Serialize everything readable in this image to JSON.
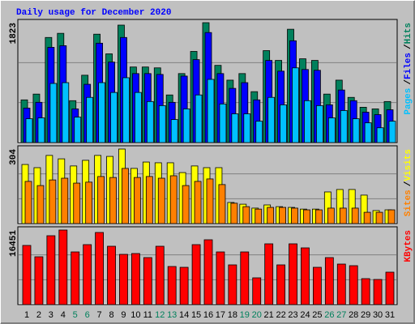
{
  "chart_data": [
    {
      "type": "bar",
      "title": "Daily usage for December 2020",
      "title_color": "#0000ff",
      "ylim": [
        0,
        1823
      ],
      "yticks": [
        1823
      ],
      "series": [
        {
          "name": "Hits",
          "color": "#00805c",
          "values": [
            649,
            737,
            1598,
            1661,
            637,
            1024,
            1648,
            1349,
            1786,
            1149,
            1149,
            1136,
            724,
            1049,
            1386,
            1823,
            1174,
            949,
            1049,
            774,
            1398,
            1249,
            1723,
            1274,
            1249,
            737,
            949,
            687,
            537,
            512,
            624
          ]
        },
        {
          "name": "Files",
          "color": "#0000ff",
          "values": [
            524,
            612,
            1448,
            1473,
            512,
            886,
            1511,
            1224,
            1598,
            1049,
            1049,
            1036,
            612,
            1011,
            1261,
            1673,
            1049,
            824,
            911,
            649,
            1249,
            1086,
            1548,
            1111,
            1099,
            574,
            799,
            637,
            462,
            425,
            499
          ]
        },
        {
          "name": "Pages",
          "color": "#00c0ff",
          "values": [
            362,
            375,
            899,
            911,
            387,
            687,
            911,
            762,
            986,
            762,
            624,
            562,
            350,
            512,
            724,
            961,
            587,
            437,
            437,
            325,
            687,
            574,
            1136,
            637,
            562,
            375,
            487,
            362,
            300,
            225,
            325
          ]
        }
      ],
      "legend_separator": "/"
    },
    {
      "type": "bar",
      "ylim": [
        0,
        304
      ],
      "yticks": [
        304
      ],
      "series": [
        {
          "name": "Visits",
          "color": "#ffff00",
          "values": [
            241,
            228,
            278,
            264,
            235,
            258,
            278,
            274,
            304,
            225,
            251,
            248,
            248,
            208,
            235,
            228,
            228,
            86,
            79,
            63,
            76,
            69,
            66,
            59,
            59,
            129,
            139,
            139,
            116,
            53,
            56
          ]
        },
        {
          "name": "Sites",
          "color": "#ff8000",
          "values": [
            172,
            155,
            178,
            185,
            165,
            169,
            192,
            188,
            225,
            188,
            192,
            185,
            195,
            155,
            172,
            182,
            159,
            83,
            69,
            59,
            66,
            66,
            63,
            56,
            56,
            63,
            63,
            63,
            46,
            46,
            56
          ]
        }
      ],
      "legend_separator": "/"
    },
    {
      "type": "bar",
      "ylim": [
        0,
        16451
      ],
      "yticks": [
        16451
      ],
      "series": [
        {
          "name": "KBytes",
          "color": "#ff0000",
          "values": [
            13053,
            10550,
            15199,
            16451,
            11622,
            13232,
            15915,
            12874,
            11086,
            11264,
            10371,
            12874,
            8404,
            8225,
            13232,
            14305,
            11622,
            8761,
            11622,
            5901,
            13411,
            8761,
            13411,
            12516,
            8225,
            10371,
            8940,
            8583,
            5722,
            5543,
            7153
          ]
        }
      ],
      "categories": [
        "1",
        "2",
        "3",
        "4",
        "5",
        "6",
        "7",
        "8",
        "9",
        "10",
        "11",
        "12",
        "13",
        "14",
        "15",
        "16",
        "17",
        "18",
        "19",
        "20",
        "21",
        "22",
        "23",
        "24",
        "25",
        "26",
        "27",
        "28",
        "29",
        "30",
        "31"
      ],
      "label_colors": [
        "#000000",
        "#000000",
        "#000000",
        "#000000",
        "#00805c",
        "#00805c",
        "#000000",
        "#000000",
        "#000000",
        "#000000",
        "#000000",
        "#00805c",
        "#00805c",
        "#000000",
        "#000000",
        "#000000",
        "#000000",
        "#000000",
        "#00805c",
        "#00805c",
        "#000000",
        "#000000",
        "#000000",
        "#000000",
        "#000000",
        "#00805c",
        "#00805c",
        "#000000",
        "#000000",
        "#000000",
        "#000000"
      ]
    }
  ]
}
